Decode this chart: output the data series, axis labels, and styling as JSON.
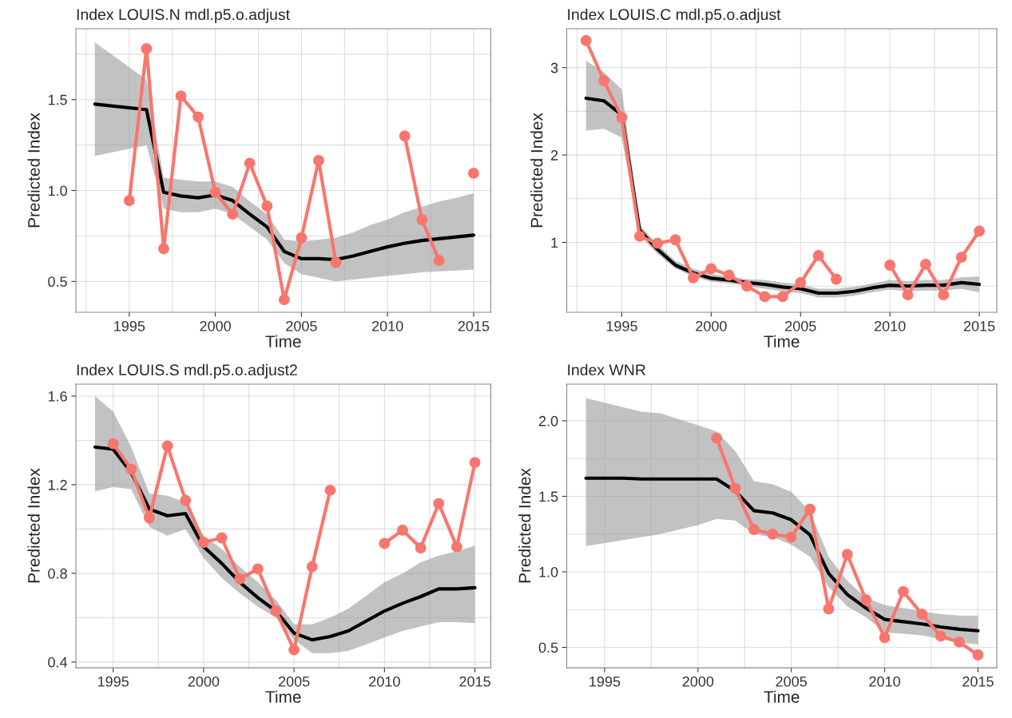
{
  "chart_data": [
    {
      "type": "line",
      "title": "Index LOUIS.N mdl.p5.o.adjust",
      "xlabel": "Time",
      "ylabel": "Predicted Index",
      "xlim": [
        1991.9,
        2016.0
      ],
      "ylim": [
        0.33,
        1.89
      ],
      "grid": true,
      "xticks": [
        {
          "value": 1992.5,
          "label": null
        },
        1995,
        {
          "value": 1997.5,
          "label": null
        },
        2000,
        {
          "value": 2002.5,
          "label": null
        },
        2005,
        {
          "value": 2007.5,
          "label": null
        },
        2010,
        {
          "value": 2012.5,
          "label": null
        },
        2015
      ],
      "yticks": [
        {
          "value": 0.5,
          "label": "0.5"
        },
        {
          "value": 0.75,
          "label": null
        },
        {
          "value": 1.0,
          "label": "1.0"
        },
        {
          "value": 1.25,
          "label": null
        },
        {
          "value": 1.5,
          "label": "1.5"
        },
        {
          "value": 1.75,
          "label": null
        }
      ],
      "series": [
        {
          "color": "#000000",
          "x": [
            1993,
            1996,
            1997,
            1998,
            1999,
            2000,
            2001,
            2002,
            2003,
            2004,
            2005,
            2006,
            2007,
            2008,
            2009,
            2010,
            2011,
            2012,
            2013,
            2014,
            2015
          ],
          "values": [
            1.475,
            1.445,
            0.99,
            0.97,
            0.96,
            0.975,
            0.945,
            0.87,
            0.8,
            0.665,
            0.625,
            0.625,
            0.62,
            0.64,
            0.665,
            0.69,
            0.71,
            0.725,
            0.735,
            0.745,
            0.755
          ],
          "lower": [
            1.19,
            1.25,
            0.9,
            0.88,
            0.88,
            0.9,
            0.87,
            0.8,
            0.73,
            0.6,
            0.54,
            0.52,
            0.5,
            0.51,
            0.52,
            0.53,
            0.54,
            0.55,
            0.555,
            0.56,
            0.565
          ],
          "upper": [
            1.815,
            1.61,
            1.07,
            1.06,
            1.05,
            1.05,
            1.02,
            0.94,
            0.87,
            0.73,
            0.72,
            0.73,
            0.74,
            0.77,
            0.81,
            0.84,
            0.88,
            0.91,
            0.94,
            0.96,
            0.985
          ]
        },
        {
          "color": "#f8766d",
          "marker": "circle",
          "x": [
            1995,
            1996,
            1997,
            1998,
            1999,
            2000,
            2001,
            2002,
            2003,
            2004,
            2005,
            2006,
            2007,
            2008,
            2009,
            2010,
            2011,
            2012,
            2013,
            2014,
            2015
          ],
          "values": [
            0.945,
            1.78,
            0.68,
            1.52,
            1.405,
            0.99,
            0.87,
            1.15,
            0.915,
            0.4,
            0.74,
            1.165,
            0.605,
            null,
            null,
            null,
            1.3,
            0.84,
            0.615,
            null,
            1.095
          ]
        }
      ]
    },
    {
      "type": "line",
      "title": "Index LOUIS.C mdl.p5.o.adjust",
      "xlabel": "Time",
      "ylabel": "Predicted Index",
      "xlim": [
        1991.92,
        2015.98
      ],
      "ylim": [
        0.2,
        3.445
      ],
      "grid": true,
      "xticks": [
        {
          "value": 1992.5,
          "label": null
        },
        1995,
        {
          "value": 1997.5,
          "label": null
        },
        2000,
        {
          "value": 2002.5,
          "label": null
        },
        2005,
        {
          "value": 2007.5,
          "label": null
        },
        2010,
        {
          "value": 2012.5,
          "label": null
        },
        2015
      ],
      "yticks": [
        {
          "value": 0.5,
          "label": null
        },
        1,
        {
          "value": 1.5,
          "label": null
        },
        2,
        {
          "value": 2.5,
          "label": null
        },
        3
      ],
      "series": [
        {
          "color": "#000000",
          "x": [
            1993,
            1994,
            1995,
            1996,
            1997,
            1998,
            1999,
            2000,
            2001,
            2002,
            2003,
            2004,
            2005,
            2006,
            2007,
            2008,
            2009,
            2010,
            2011,
            2012,
            2013,
            2014,
            2015
          ],
          "values": [
            2.65,
            2.62,
            2.46,
            1.14,
            0.92,
            0.74,
            0.65,
            0.59,
            0.57,
            0.54,
            0.52,
            0.49,
            0.47,
            0.42,
            0.42,
            0.44,
            0.48,
            0.51,
            0.5,
            0.51,
            0.51,
            0.54,
            0.52
          ],
          "lower": [
            2.28,
            2.3,
            2.2,
            1.08,
            0.87,
            0.7,
            0.61,
            0.55,
            0.53,
            0.5,
            0.47,
            0.44,
            0.42,
            0.37,
            0.37,
            0.39,
            0.43,
            0.46,
            0.44,
            0.45,
            0.45,
            0.47,
            0.43
          ],
          "upper": [
            3.08,
            2.95,
            2.75,
            1.2,
            0.98,
            0.79,
            0.7,
            0.64,
            0.61,
            0.58,
            0.57,
            0.54,
            0.52,
            0.47,
            0.47,
            0.49,
            0.53,
            0.57,
            0.56,
            0.57,
            0.57,
            0.6,
            0.61
          ]
        },
        {
          "color": "#f8766d",
          "marker": "circle",
          "x": [
            1993,
            1994,
            1995,
            1996,
            1997,
            1998,
            1999,
            2000,
            2001,
            2002,
            2003,
            2004,
            2005,
            2006,
            2007,
            2008,
            2009,
            2010,
            2011,
            2012,
            2013,
            2014,
            2015
          ],
          "values": [
            3.31,
            2.85,
            2.43,
            1.07,
            0.99,
            1.03,
            0.595,
            0.7,
            0.625,
            0.5,
            0.38,
            0.38,
            0.54,
            0.85,
            0.58,
            null,
            null,
            0.74,
            0.4,
            0.75,
            0.4,
            0.83,
            1.13
          ]
        }
      ]
    },
    {
      "type": "line",
      "title": "Index LOUIS.S mdl.p5.o.adjust2",
      "xlabel": "Time",
      "ylabel": "Predicted Index",
      "xlim": [
        1992.94,
        2015.88
      ],
      "ylim": [
        0.374,
        1.654
      ],
      "grid": true,
      "xticks": [
        1995,
        {
          "value": 1997.5,
          "label": null
        },
        2000,
        {
          "value": 2002.5,
          "label": null
        },
        2005,
        {
          "value": 2007.5,
          "label": null
        },
        2010,
        {
          "value": 2012.5,
          "label": null
        },
        2015
      ],
      "yticks": [
        {
          "value": 0.4,
          "label": "0.4"
        },
        {
          "value": 0.6,
          "label": null
        },
        {
          "value": 0.8,
          "label": "0.8"
        },
        {
          "value": 1.0,
          "label": null
        },
        {
          "value": 1.2,
          "label": "1.2"
        },
        {
          "value": 1.4,
          "label": null
        },
        {
          "value": 1.6,
          "label": "1.6"
        }
      ],
      "series": [
        {
          "color": "#000000",
          "x": [
            1994,
            1995,
            1996,
            1997,
            1998,
            1999,
            2000,
            2001,
            2002,
            2003,
            2004,
            2005,
            2006,
            2007,
            2008,
            2009,
            2010,
            2011,
            2012,
            2013,
            2014,
            2015
          ],
          "values": [
            1.37,
            1.36,
            1.255,
            1.09,
            1.06,
            1.07,
            0.92,
            0.845,
            0.76,
            0.69,
            0.63,
            0.53,
            0.5,
            0.515,
            0.54,
            0.585,
            0.63,
            0.665,
            0.695,
            0.73,
            0.73,
            0.735
          ],
          "lower": [
            1.17,
            1.19,
            1.18,
            1.01,
            0.97,
            1.0,
            0.87,
            0.78,
            0.71,
            0.65,
            0.6,
            0.5,
            0.44,
            0.44,
            0.45,
            0.48,
            0.51,
            0.54,
            0.56,
            0.58,
            0.58,
            0.575
          ],
          "upper": [
            1.6,
            1.53,
            1.37,
            1.16,
            1.15,
            1.12,
            0.97,
            0.91,
            0.83,
            0.76,
            0.68,
            0.57,
            0.57,
            0.6,
            0.64,
            0.7,
            0.76,
            0.8,
            0.85,
            0.88,
            0.9,
            0.925
          ]
        },
        {
          "color": "#f8766d",
          "marker": "circle",
          "x": [
            1995,
            1996,
            1997,
            1998,
            1999,
            2000,
            2001,
            2002,
            2003,
            2004,
            2005,
            2006,
            2007,
            2008,
            2009,
            2010,
            2011,
            2012,
            2013,
            2014,
            2015
          ],
          "values": [
            1.385,
            1.27,
            1.05,
            1.375,
            1.13,
            0.94,
            0.96,
            0.775,
            0.82,
            0.63,
            0.455,
            0.83,
            1.175,
            null,
            null,
            0.935,
            0.995,
            0.915,
            1.115,
            0.92,
            1.3
          ]
        }
      ]
    },
    {
      "type": "line",
      "title": "Index WNR",
      "xlabel": "Time",
      "ylabel": "Predicted Index",
      "xlim": [
        1992.97,
        2016.01
      ],
      "ylim": [
        0.365,
        2.243
      ],
      "grid": true,
      "xticks": [
        1995,
        {
          "value": 1997.5,
          "label": null
        },
        2000,
        {
          "value": 2002.5,
          "label": null
        },
        2005,
        {
          "value": 2007.5,
          "label": null
        },
        2010,
        {
          "value": 2012.5,
          "label": null
        },
        2015
      ],
      "yticks": [
        {
          "value": 0.5,
          "label": "0.5"
        },
        {
          "value": 0.75,
          "label": null
        },
        {
          "value": 1.0,
          "label": "1.0"
        },
        {
          "value": 1.25,
          "label": null
        },
        {
          "value": 1.5,
          "label": "1.5"
        },
        {
          "value": 1.75,
          "label": null
        },
        {
          "value": 2.0,
          "label": "2.0"
        }
      ],
      "series": [
        {
          "color": "#000000",
          "x": [
            1994,
            1995,
            1996,
            1997,
            1998,
            1999,
            2000,
            2001,
            2002,
            2003,
            2004,
            2005,
            2006,
            2007,
            2008,
            2009,
            2010,
            2011,
            2012,
            2013,
            2014,
            2015
          ],
          "values": [
            1.62,
            1.62,
            1.62,
            1.615,
            1.615,
            1.615,
            1.615,
            1.615,
            1.535,
            1.405,
            1.39,
            1.345,
            1.245,
            0.99,
            0.85,
            0.76,
            0.685,
            0.67,
            0.655,
            0.635,
            0.62,
            0.61
          ],
          "lower": [
            1.17,
            1.19,
            1.21,
            1.23,
            1.25,
            1.28,
            1.31,
            1.35,
            1.34,
            1.25,
            1.23,
            1.18,
            1.1,
            0.9,
            0.77,
            0.7,
            0.6,
            0.59,
            0.58,
            0.555,
            0.53,
            0.52
          ],
          "upper": [
            2.15,
            2.12,
            2.09,
            2.06,
            2.05,
            2.01,
            1.97,
            1.93,
            1.8,
            1.6,
            1.58,
            1.53,
            1.4,
            1.1,
            0.94,
            0.83,
            0.78,
            0.76,
            0.74,
            0.72,
            0.71,
            0.71
          ]
        },
        {
          "color": "#f8766d",
          "marker": "circle",
          "x": [
            2001,
            2002,
            2003,
            2004,
            2005,
            2006,
            2007,
            2008,
            2009,
            2010,
            2011,
            2012,
            2013,
            2014,
            2015
          ],
          "values": [
            1.885,
            1.553,
            1.28,
            1.25,
            1.23,
            1.415,
            0.755,
            1.115,
            0.815,
            0.565,
            0.87,
            0.72,
            0.575,
            0.535,
            0.45
          ]
        }
      ]
    }
  ]
}
